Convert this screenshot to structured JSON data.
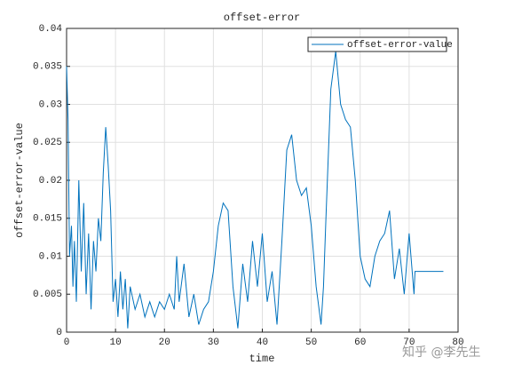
{
  "chart_data": {
    "type": "line",
    "title": "offset-error",
    "xlabel": "time",
    "ylabel": "offset-error-value",
    "watermark": "知乎 @李先生",
    "x": [
      0,
      0.3,
      0.6,
      1,
      1.3,
      1.6,
      2,
      2.5,
      3,
      3.5,
      4,
      4.5,
      5,
      5.5,
      6,
      6.5,
      7,
      7.5,
      8,
      8.5,
      9,
      9.5,
      10,
      10.5,
      11,
      11.5,
      12,
      12.5,
      13,
      14,
      15,
      16,
      17,
      18,
      19,
      20,
      21,
      22,
      22.5,
      23,
      24,
      25,
      26,
      27,
      28,
      29,
      30,
      31,
      32,
      33,
      34,
      35,
      36,
      37,
      38,
      39,
      40,
      41,
      42,
      43,
      44,
      45,
      46,
      47,
      48,
      49,
      50,
      51,
      52,
      52.5,
      53,
      54,
      55,
      56,
      57,
      58,
      59,
      60,
      61,
      62,
      63,
      64,
      65,
      66,
      67,
      68,
      69,
      70,
      71,
      71.2,
      77
    ],
    "series": [
      {
        "name": "offset-error-value",
        "color": "#0072bd",
        "values": [
          0.035,
          0.028,
          0.01,
          0.014,
          0.006,
          0.012,
          0.004,
          0.02,
          0.008,
          0.017,
          0.005,
          0.013,
          0.003,
          0.012,
          0.008,
          0.015,
          0.012,
          0.021,
          0.027,
          0.022,
          0.016,
          0.004,
          0.007,
          0.002,
          0.008,
          0.003,
          0.007,
          0.0005,
          0.006,
          0.003,
          0.005,
          0.002,
          0.004,
          0.002,
          0.004,
          0.003,
          0.005,
          0.003,
          0.01,
          0.004,
          0.009,
          0.002,
          0.005,
          0.001,
          0.003,
          0.004,
          0.008,
          0.014,
          0.017,
          0.016,
          0.006,
          0.0005,
          0.009,
          0.004,
          0.012,
          0.006,
          0.013,
          0.004,
          0.008,
          0.001,
          0.012,
          0.024,
          0.026,
          0.02,
          0.018,
          0.019,
          0.014,
          0.006,
          0.001,
          0.006,
          0.015,
          0.032,
          0.037,
          0.03,
          0.028,
          0.027,
          0.02,
          0.01,
          0.007,
          0.006,
          0.01,
          0.012,
          0.013,
          0.016,
          0.007,
          0.011,
          0.005,
          0.013,
          0.005,
          0.008,
          0.008
        ]
      }
    ],
    "xlim": [
      0,
      80
    ],
    "xticks": [
      0,
      10,
      20,
      30,
      40,
      50,
      60,
      70,
      80
    ],
    "ylim": [
      0,
      0.04
    ],
    "yticks": [
      0,
      0.005,
      0.01,
      0.015,
      0.02,
      0.025,
      0.03,
      0.035,
      0.04
    ],
    "grid": true,
    "legend": "upper right"
  }
}
